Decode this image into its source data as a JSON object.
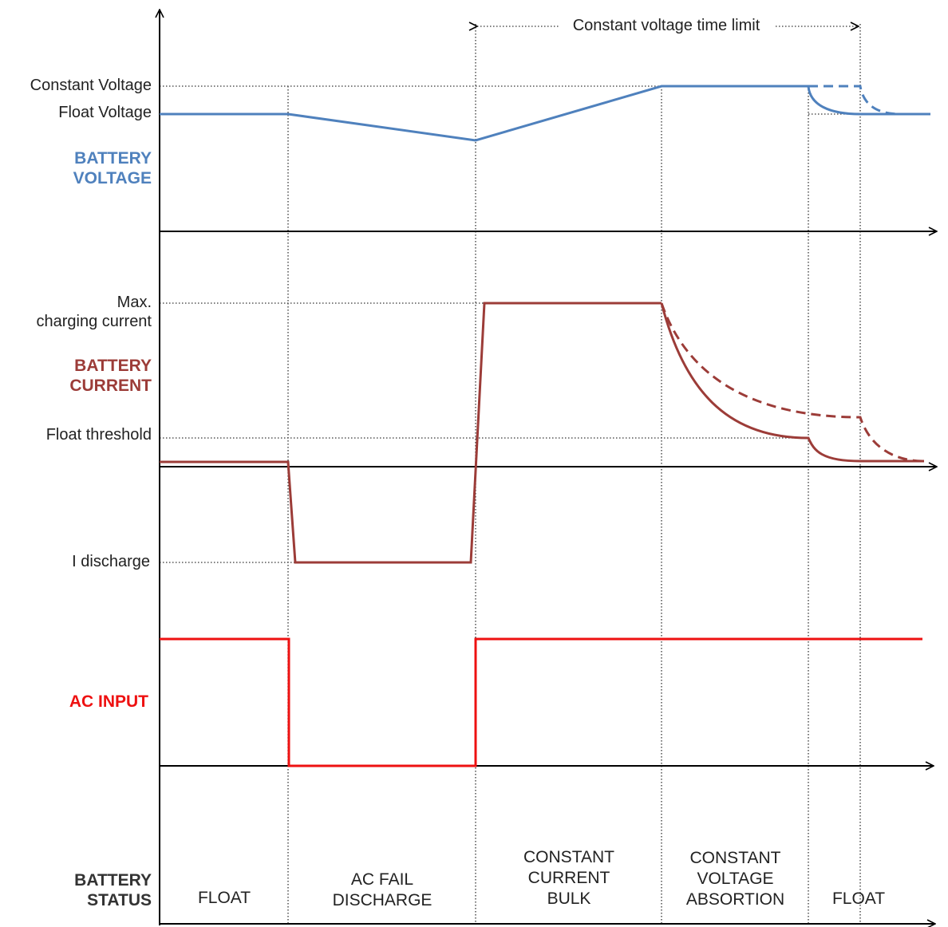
{
  "time_limit_label": "Constant voltage time limit",
  "voltage": {
    "title_line1": "BATTERY",
    "title_line2": "VOLTAGE",
    "color": "#4f81bd",
    "levels": {
      "constant": "Constant Voltage",
      "float": "Float Voltage"
    }
  },
  "current": {
    "title_line1": "BATTERY",
    "title_line2": "CURRENT",
    "color": "#9c3c38",
    "levels": {
      "max_line1": "Max.",
      "max_line2": "charging current",
      "float_threshold": "Float threshold",
      "discharge": "I discharge"
    }
  },
  "ac": {
    "title": "AC INPUT",
    "color": "#ee1111"
  },
  "status": {
    "title_line1": "BATTERY",
    "title_line2": "STATUS",
    "phases": {
      "float1": "FLOAT",
      "acfail_line1": "AC FAIL",
      "acfail_line2": "DISCHARGE",
      "cc_line1": "CONSTANT",
      "cc_line2": "CURRENT",
      "cc_line3": "BULK",
      "cv_line1": "CONSTANT",
      "cv_line2": "VOLTAGE",
      "cv_line3": "ABSORTION",
      "float2": "FLOAT"
    }
  }
}
